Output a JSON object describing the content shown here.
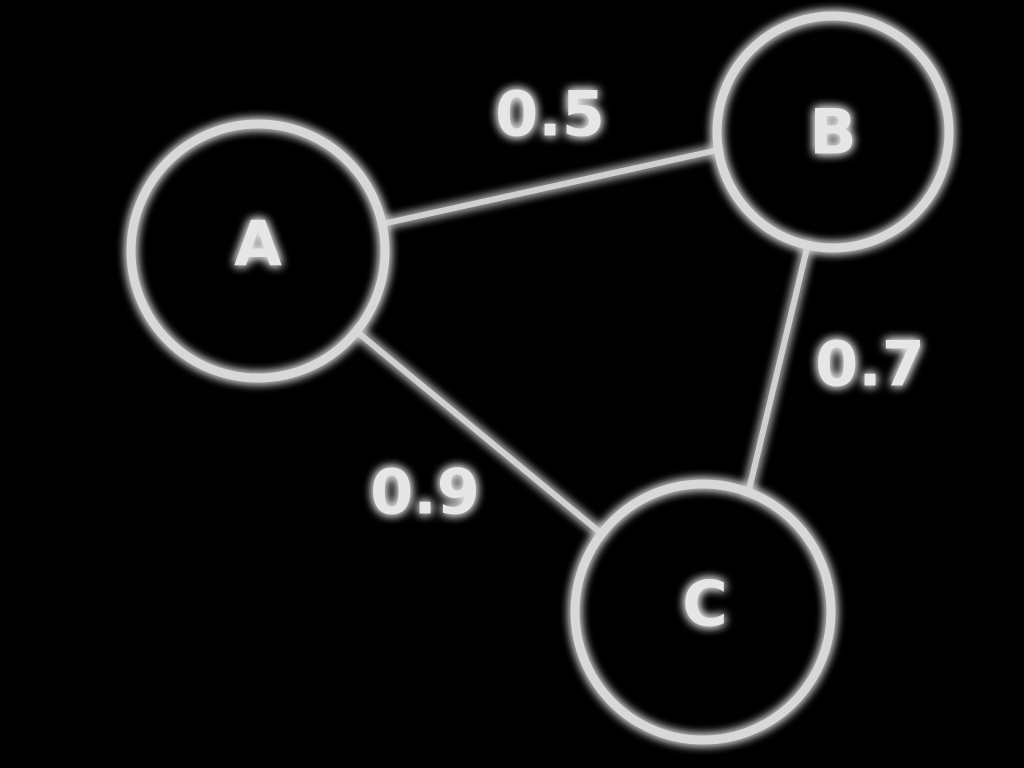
{
  "diagram": {
    "type": "weighted-graph",
    "nodes": [
      {
        "id": "A",
        "label": "A"
      },
      {
        "id": "B",
        "label": "B"
      },
      {
        "id": "C",
        "label": "C"
      }
    ],
    "edges": [
      {
        "from": "A",
        "to": "B",
        "weight": "0.5"
      },
      {
        "from": "B",
        "to": "C",
        "weight": "0.7"
      },
      {
        "from": "A",
        "to": "C",
        "weight": "0.9"
      }
    ]
  }
}
